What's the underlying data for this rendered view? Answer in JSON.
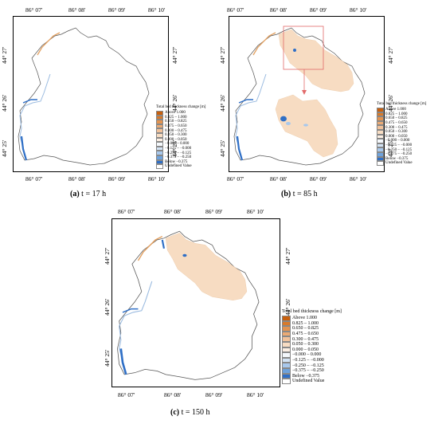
{
  "legend_title": "Total bed thickness change [m]",
  "legend_entries": [
    {
      "label": "Above   1.000",
      "color": "#c8600e"
    },
    {
      "label": "0.825 – 1.000",
      "color": "#d97a2a"
    },
    {
      "label": "0.650 – 0.825",
      "color": "#e39350"
    },
    {
      "label": "0.475 – 0.650",
      "color": "#ebaa74"
    },
    {
      "label": "0.300 – 0.475",
      "color": "#f1c29b"
    },
    {
      "label": "0.050 – 0.300",
      "color": "#f7dcc2"
    },
    {
      "label": "0.000 – 0.050",
      "color": "#fcefe3"
    },
    {
      "label": "−0.000 – 0.000",
      "color": "#f4f8fc"
    },
    {
      "label": "−0.125 – −0.000",
      "color": "#d4e4f5"
    },
    {
      "label": "−0.250 – −0.125",
      "color": "#a8c8ec"
    },
    {
      "label": "−0.375 – −0.250",
      "color": "#6ea2dc"
    },
    {
      "label": "Below   −0.375",
      "color": "#2f6fc6"
    },
    {
      "label": "Undefined Value",
      "color": "#ffffff"
    }
  ],
  "x_ticks": [
    "86° 07′",
    "86° 08′",
    "86° 09′",
    "86° 10′"
  ],
  "y_ticks": [
    "44° 27′",
    "44° 26′",
    "44° 25′"
  ],
  "panels": [
    {
      "label": "(a)",
      "caption": "t = 17 h"
    },
    {
      "label": "(b)",
      "caption": "t = 85 h"
    },
    {
      "label": "(c)",
      "caption": "t = 150 h"
    }
  ],
  "colors": {
    "deposition": "#f7dcc2",
    "channel_deposition": "#e3a060",
    "erosion": "#2f6fc6",
    "light_erosion": "#a8c8ec",
    "zoom_box": "#e26a6a"
  }
}
